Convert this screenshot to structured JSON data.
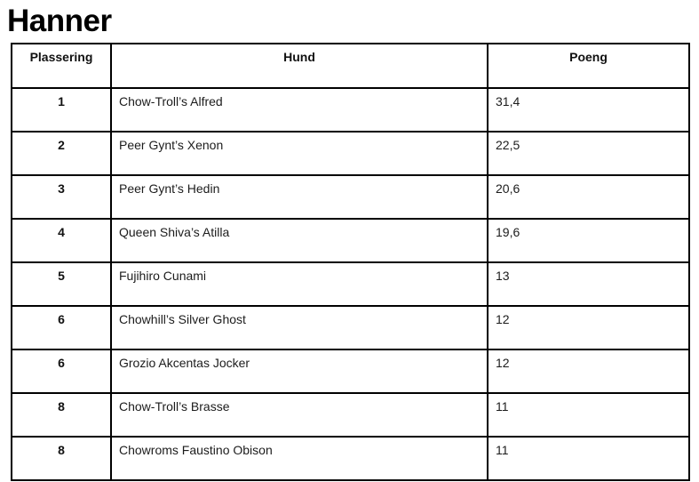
{
  "page": {
    "title": "Hanner"
  },
  "table": {
    "headers": [
      "Plassering",
      "Hund",
      "Poeng"
    ],
    "rows": [
      {
        "plassering": "1",
        "hund": "Chow-Troll’s Alfred",
        "poeng": "31,4"
      },
      {
        "plassering": "2",
        "hund": "Peer Gynt’s Xenon",
        "poeng": "22,5"
      },
      {
        "plassering": "3",
        "hund": "Peer Gynt’s Hedin",
        "poeng": "20,6"
      },
      {
        "plassering": "4",
        "hund": "Queen Shiva’s Atilla",
        "poeng": "19,6"
      },
      {
        "plassering": "5",
        "hund": "Fujihiro Cunami",
        "poeng": "13"
      },
      {
        "plassering": "6",
        "hund": "Chowhill’s Silver Ghost",
        "poeng": "12"
      },
      {
        "plassering": "6",
        "hund": "Grozio Akcentas Jocker",
        "poeng": "12"
      },
      {
        "plassering": "8",
        "hund": "Chow-Troll’s Brasse",
        "poeng": "11"
      },
      {
        "plassering": "8",
        "hund": "Chowroms Faustino Obison",
        "poeng": "11"
      }
    ]
  }
}
